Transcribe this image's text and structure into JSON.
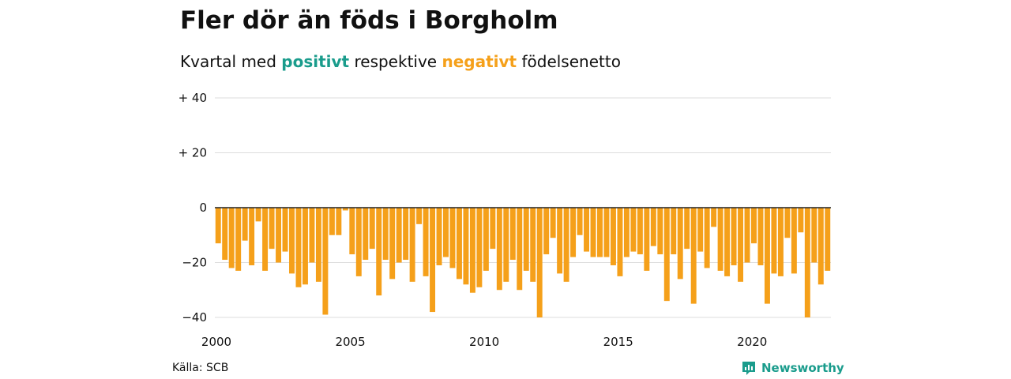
{
  "title": "Fler dör än föds i Borgholm",
  "subtitle": {
    "prefix": "Kvartal med ",
    "positive_word": "positivt",
    "middle": " respektive ",
    "negative_word": "negativt",
    "suffix": " födelsenetto"
  },
  "source": "Källa: SCB",
  "brand": {
    "name": "Newsworthy",
    "icon": "newsworthy-logo-icon"
  },
  "colors": {
    "positive": "#1a9c8c",
    "negative": "#f5a01a",
    "zero_line": "#222222",
    "grid": "#dddddd",
    "brand": "#1a9c8c"
  },
  "chart_data": {
    "type": "bar",
    "title": "Fler dör än föds i Borgholm",
    "ylim": [
      -40,
      40
    ],
    "y_ticks": [
      {
        "value": 40,
        "label": "+ 40"
      },
      {
        "value": 20,
        "label": "+ 20"
      },
      {
        "value": 0,
        "label": "0"
      },
      {
        "value": -20,
        "label": "−20"
      },
      {
        "value": -40,
        "label": "−40"
      }
    ],
    "x_ticks": [
      {
        "value": 2000,
        "label": "2000"
      },
      {
        "value": 2005,
        "label": "2005"
      },
      {
        "value": 2010,
        "label": "2010"
      },
      {
        "value": 2015,
        "label": "2015"
      },
      {
        "value": 2020,
        "label": "2020"
      }
    ],
    "first_period": "2000 Q1",
    "last_period": "2022 Q4",
    "values": [
      -13,
      -19,
      -22,
      -23,
      -12,
      -21,
      -5,
      -23,
      -15,
      -20,
      -16,
      -24,
      -29,
      -28,
      -20,
      -27,
      -39,
      -10,
      -10,
      -1,
      -17,
      -25,
      -19,
      -15,
      -32,
      -19,
      -26,
      -20,
      -19,
      -27,
      -6,
      -25,
      -38,
      -21,
      -18,
      -22,
      -26,
      -28,
      -31,
      -29,
      -23,
      -15,
      -30,
      -27,
      -19,
      -30,
      -23,
      -27,
      -40,
      -17,
      -11,
      -24,
      -27,
      -18,
      -10,
      -16,
      -18,
      -18,
      -18,
      -21,
      -25,
      -18,
      -16,
      -17,
      -23,
      -14,
      -17,
      -34,
      -17,
      -26,
      -15,
      -35,
      -16,
      -22,
      -7,
      -23,
      -25,
      -21,
      -27,
      -20,
      -13,
      -21,
      -35,
      -24,
      -25,
      -11,
      -24,
      -9,
      -40,
      -20,
      -28,
      -23
    ]
  }
}
